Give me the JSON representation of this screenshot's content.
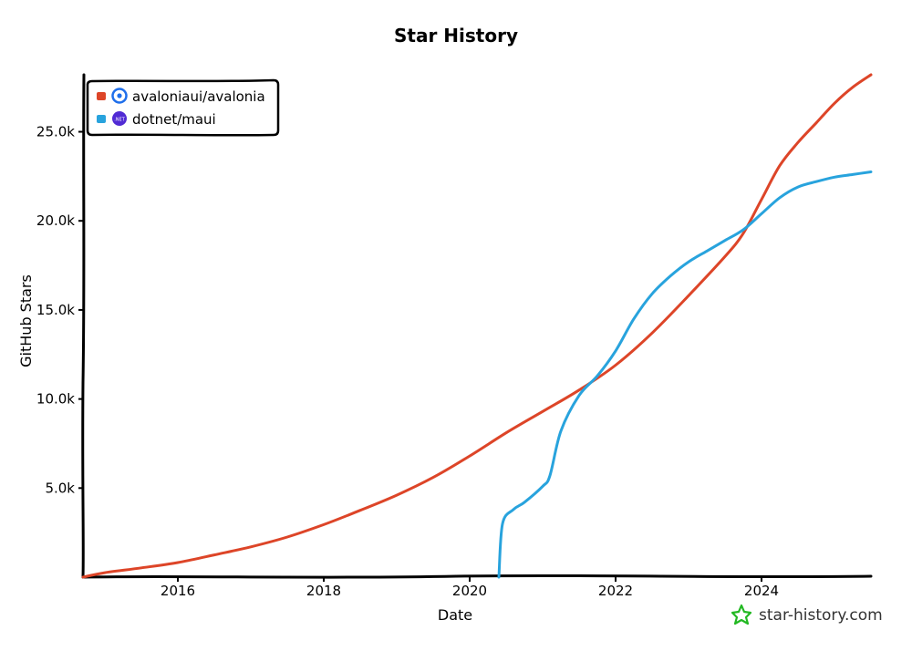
{
  "chart_data": {
    "type": "line",
    "title": "Star History",
    "xlabel": "Date",
    "ylabel": "GitHub Stars",
    "x_ticks": [
      "2016",
      "2018",
      "2020",
      "2022",
      "2024"
    ],
    "y_ticks": [
      "5.0k",
      "10.0k",
      "15.0k",
      "20.0k",
      "25.0k"
    ],
    "xlim": [
      2014.7,
      2025.5
    ],
    "ylim": [
      0,
      28200
    ],
    "grid": false,
    "legend_position": "top-left",
    "series": [
      {
        "name": "avaloniaui/avalonia",
        "color": "#dd4528",
        "icon": "avalonia-logo-icon",
        "points": [
          [
            2014.7,
            0
          ],
          [
            2015.0,
            250
          ],
          [
            2015.5,
            520
          ],
          [
            2016.0,
            820
          ],
          [
            2016.5,
            1250
          ],
          [
            2017.0,
            1700
          ],
          [
            2017.5,
            2250
          ],
          [
            2018.0,
            2950
          ],
          [
            2018.5,
            3750
          ],
          [
            2019.0,
            4600
          ],
          [
            2019.5,
            5600
          ],
          [
            2020.0,
            6800
          ],
          [
            2020.5,
            8100
          ],
          [
            2021.0,
            9300
          ],
          [
            2021.5,
            10500
          ],
          [
            2022.0,
            11900
          ],
          [
            2022.5,
            13700
          ],
          [
            2023.0,
            15800
          ],
          [
            2023.5,
            18000
          ],
          [
            2023.75,
            19300
          ],
          [
            2024.0,
            21200
          ],
          [
            2024.25,
            23100
          ],
          [
            2024.5,
            24400
          ],
          [
            2024.75,
            25500
          ],
          [
            2025.0,
            26600
          ],
          [
            2025.25,
            27500
          ],
          [
            2025.5,
            28200
          ]
        ]
      },
      {
        "name": "dotnet/maui",
        "color": "#28a3dd",
        "icon": "dotnet-logo-icon",
        "points": [
          [
            2020.4,
            0
          ],
          [
            2020.45,
            3000
          ],
          [
            2020.6,
            3800
          ],
          [
            2020.75,
            4200
          ],
          [
            2021.0,
            5100
          ],
          [
            2021.1,
            5700
          ],
          [
            2021.25,
            8200
          ],
          [
            2021.5,
            10200
          ],
          [
            2021.75,
            11300
          ],
          [
            2022.0,
            12700
          ],
          [
            2022.25,
            14500
          ],
          [
            2022.5,
            15900
          ],
          [
            2022.75,
            16900
          ],
          [
            2023.0,
            17700
          ],
          [
            2023.25,
            18300
          ],
          [
            2023.5,
            18900
          ],
          [
            2023.75,
            19500
          ],
          [
            2024.0,
            20400
          ],
          [
            2024.25,
            21300
          ],
          [
            2024.5,
            21900
          ],
          [
            2024.75,
            22200
          ],
          [
            2025.0,
            22450
          ],
          [
            2025.25,
            22600
          ],
          [
            2025.5,
            22750
          ]
        ]
      }
    ]
  },
  "watermark": {
    "text": "star-history.com",
    "icon": "star-history-logo-icon",
    "color": "#22b822"
  }
}
